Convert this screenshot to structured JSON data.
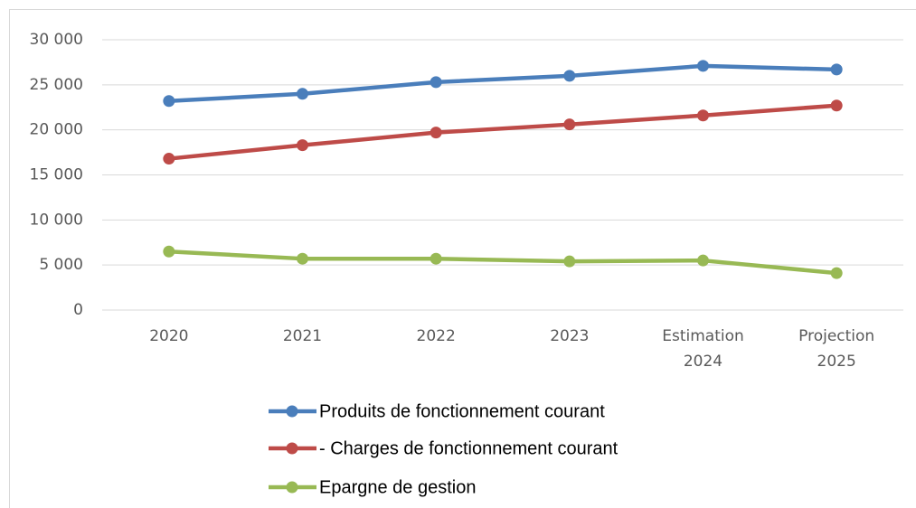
{
  "chart_data": {
    "type": "line",
    "categories": [
      "2020",
      "2021",
      "2022",
      "2023",
      "Estimation 2024",
      "Projection 2025"
    ],
    "series": [
      {
        "name": "Produits de fonctionnement courant",
        "color": "#4a7ebb",
        "values": [
          23200,
          24000,
          25300,
          26000,
          27100,
          26700
        ]
      },
      {
        "name": "- Charges de fonctionnement courant",
        "color": "#be4b48",
        "values": [
          16800,
          18300,
          19700,
          20600,
          21600,
          22700
        ]
      },
      {
        "name": "Epargne de gestion",
        "color": "#98b954",
        "values": [
          6500,
          5700,
          5700,
          5400,
          5500,
          4100
        ]
      }
    ],
    "ylim": [
      0,
      30000
    ],
    "yticks": [
      0,
      {
        "value": 5000,
        "label": "5 000"
      },
      {
        "value": 10000,
        "label": "10 000"
      },
      {
        "value": 15000,
        "label": "15 000"
      },
      {
        "value": 20000,
        "label": "20 000"
      },
      {
        "value": 25000,
        "label": "25 000"
      },
      {
        "value": 30000,
        "label": "30 000"
      }
    ],
    "grid": true,
    "legend": "bottom"
  }
}
